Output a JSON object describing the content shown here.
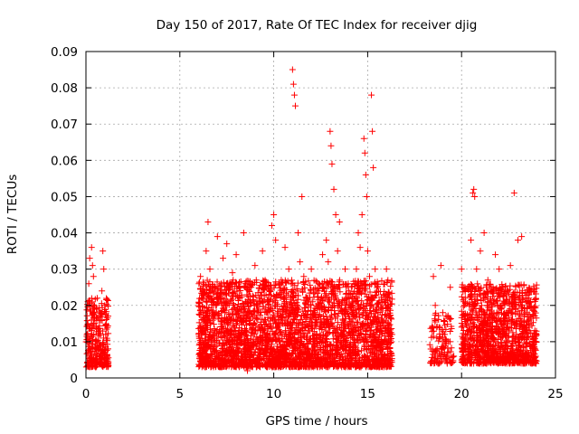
{
  "chart_data": {
    "type": "scatter",
    "title": "Day 150 of 2017, Rate Of TEC Index for receiver djig",
    "xlabel": "GPS time / hours",
    "ylabel": "ROTI / TECUs",
    "xlim": [
      0,
      25
    ],
    "ylim": [
      0,
      0.09
    ],
    "xticks": [
      0,
      5,
      10,
      15,
      20,
      25
    ],
    "xtick_labels": [
      "0",
      "5",
      "10",
      "15",
      "20",
      "25"
    ],
    "yticks": [
      0,
      0.01,
      0.02,
      0.03,
      0.04,
      0.05,
      0.06,
      0.07,
      0.08,
      0.09
    ],
    "ytick_labels": [
      "0",
      "0.01",
      "0.02",
      "0.03",
      "0.04",
      "0.05",
      "0.06",
      "0.07",
      "0.08",
      "0.09"
    ],
    "grid": true,
    "marker": "+",
    "color": "#ff0000",
    "series": [
      {
        "name": "ROTI",
        "points": [
          [
            0.05,
            0.012
          ],
          [
            0.1,
            0.021
          ],
          [
            0.15,
            0.026
          ],
          [
            0.2,
            0.033
          ],
          [
            0.25,
            0.008
          ],
          [
            0.3,
            0.016
          ],
          [
            0.35,
            0.031
          ],
          [
            0.4,
            0.028
          ],
          [
            0.45,
            0.019
          ],
          [
            0.5,
            0.01
          ],
          [
            0.55,
            0.014
          ],
          [
            0.6,
            0.022
          ],
          [
            0.7,
            0.006
          ],
          [
            0.8,
            0.018
          ],
          [
            0.9,
            0.035
          ],
          [
            0.95,
            0.03
          ],
          [
            1.0,
            0.02
          ],
          [
            1.05,
            0.012
          ],
          [
            1.1,
            0.004
          ],
          [
            0.3,
            0.036
          ],
          [
            0.2,
            0.005
          ],
          [
            0.6,
            0.009
          ],
          [
            0.75,
            0.013
          ],
          [
            0.85,
            0.024
          ],
          [
            0.1,
            0.011
          ],
          [
            6.0,
            0.012
          ],
          [
            6.1,
            0.028
          ],
          [
            6.2,
            0.022
          ],
          [
            6.3,
            0.016
          ],
          [
            6.4,
            0.035
          ],
          [
            6.5,
            0.043
          ],
          [
            6.6,
            0.03
          ],
          [
            6.8,
            0.02
          ],
          [
            7.0,
            0.039
          ],
          [
            7.2,
            0.026
          ],
          [
            7.3,
            0.033
          ],
          [
            7.5,
            0.037
          ],
          [
            7.6,
            0.015
          ],
          [
            7.8,
            0.029
          ],
          [
            8.0,
            0.034
          ],
          [
            8.2,
            0.022
          ],
          [
            8.4,
            0.04
          ],
          [
            8.5,
            0.012
          ],
          [
            8.6,
            0.002
          ],
          [
            8.8,
            0.025
          ],
          [
            9.0,
            0.031
          ],
          [
            9.2,
            0.018
          ],
          [
            9.4,
            0.035
          ],
          [
            9.6,
            0.009
          ],
          [
            9.8,
            0.024
          ],
          [
            9.9,
            0.042
          ],
          [
            10.0,
            0.045
          ],
          [
            10.1,
            0.038
          ],
          [
            10.2,
            0.014
          ],
          [
            10.4,
            0.027
          ],
          [
            10.6,
            0.036
          ],
          [
            10.8,
            0.03
          ],
          [
            10.9,
            0.015
          ],
          [
            11.0,
            0.085
          ],
          [
            11.05,
            0.081
          ],
          [
            11.1,
            0.078
          ],
          [
            11.15,
            0.075
          ],
          [
            11.3,
            0.04
          ],
          [
            11.4,
            0.032
          ],
          [
            11.5,
            0.05
          ],
          [
            11.6,
            0.028
          ],
          [
            11.8,
            0.022
          ],
          [
            12.0,
            0.03
          ],
          [
            12.2,
            0.018
          ],
          [
            12.4,
            0.026
          ],
          [
            12.6,
            0.034
          ],
          [
            12.8,
            0.038
          ],
          [
            12.9,
            0.032
          ],
          [
            13.0,
            0.068
          ],
          [
            13.05,
            0.064
          ],
          [
            13.1,
            0.059
          ],
          [
            13.2,
            0.052
          ],
          [
            13.3,
            0.045
          ],
          [
            13.4,
            0.035
          ],
          [
            13.5,
            0.043
          ],
          [
            13.6,
            0.02
          ],
          [
            13.8,
            0.03
          ],
          [
            14.0,
            0.024
          ],
          [
            14.2,
            0.018
          ],
          [
            14.4,
            0.03
          ],
          [
            14.5,
            0.04
          ],
          [
            14.6,
            0.036
          ],
          [
            14.7,
            0.045
          ],
          [
            14.8,
            0.066
          ],
          [
            14.85,
            0.062
          ],
          [
            14.9,
            0.056
          ],
          [
            14.95,
            0.05
          ],
          [
            15.0,
            0.035
          ],
          [
            15.1,
            0.028
          ],
          [
            15.2,
            0.078
          ],
          [
            15.25,
            0.068
          ],
          [
            15.3,
            0.058
          ],
          [
            15.4,
            0.03
          ],
          [
            15.5,
            0.01
          ],
          [
            16.0,
            0.03
          ],
          [
            16.1,
            0.015
          ],
          [
            16.2,
            0.006
          ],
          [
            16.3,
            0.012
          ],
          [
            18.5,
            0.028
          ],
          [
            18.6,
            0.02
          ],
          [
            18.7,
            0.008
          ],
          [
            18.8,
            0.014
          ],
          [
            18.9,
            0.031
          ],
          [
            19.0,
            0.018
          ],
          [
            19.1,
            0.012
          ],
          [
            19.2,
            0.005
          ],
          [
            19.3,
            0.01
          ],
          [
            19.4,
            0.025
          ],
          [
            20.0,
            0.03
          ],
          [
            20.2,
            0.022
          ],
          [
            20.4,
            0.014
          ],
          [
            20.5,
            0.038
          ],
          [
            20.6,
            0.051
          ],
          [
            20.65,
            0.052
          ],
          [
            20.7,
            0.05
          ],
          [
            20.8,
            0.03
          ],
          [
            21.0,
            0.035
          ],
          [
            21.2,
            0.04
          ],
          [
            21.4,
            0.027
          ],
          [
            21.6,
            0.02
          ],
          [
            21.8,
            0.034
          ],
          [
            22.0,
            0.03
          ],
          [
            22.2,
            0.025
          ],
          [
            22.4,
            0.018
          ],
          [
            22.6,
            0.031
          ],
          [
            22.8,
            0.051
          ],
          [
            23.0,
            0.038
          ],
          [
            23.2,
            0.039
          ],
          [
            23.4,
            0.022
          ],
          [
            23.6,
            0.015
          ],
          [
            23.8,
            0.008
          ],
          [
            23.9,
            0.012
          ]
        ]
      }
    ],
    "dense_ranges": [
      [
        0.0,
        1.2,
        0.003,
        0.022,
        260
      ],
      [
        6.0,
        16.3,
        0.003,
        0.027,
        3200
      ],
      [
        18.3,
        19.6,
        0.004,
        0.018,
        120
      ],
      [
        20.0,
        24.0,
        0.004,
        0.026,
        1200
      ]
    ]
  }
}
